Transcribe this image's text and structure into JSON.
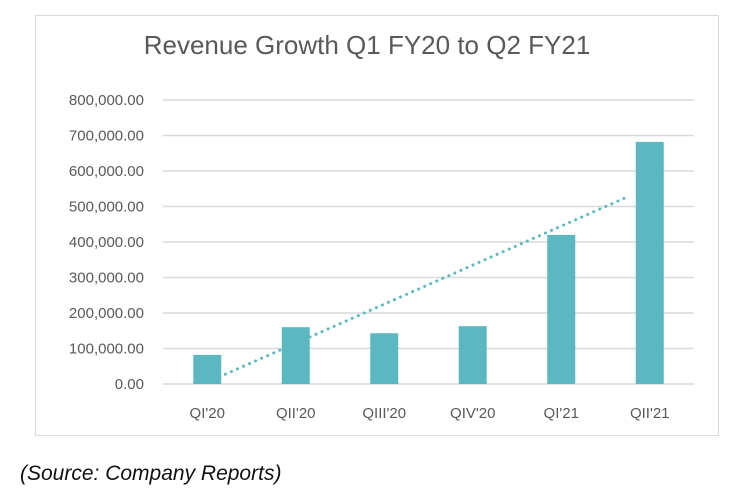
{
  "chart_data": {
    "type": "bar",
    "title": "Revenue Growth Q1 FY20 to Q2 FY21",
    "xlabel": "",
    "ylabel": "",
    "categories": [
      "QI'20",
      "QII'20",
      "QIII'20",
      "QIV'20",
      "QI'21",
      "QII'21"
    ],
    "values": [
      82000,
      160000,
      143000,
      163000,
      420000,
      682000
    ],
    "ylim": [
      0,
      800000
    ],
    "yticks": [
      0,
      100000,
      200000,
      300000,
      400000,
      500000,
      600000,
      700000,
      800000
    ],
    "ytick_labels": [
      "0.00",
      "100,000.00",
      "200,000.00",
      "300,000.00",
      "400,000.00",
      "500,000.00",
      "600,000.00",
      "700,000.00",
      "800,000.00"
    ],
    "grid": true,
    "bar_color": "#5bb8c1",
    "trendline": {
      "type": "linear",
      "style": "dotted",
      "color": "#5bb8c1",
      "start_value": 5000,
      "end_value": 530000
    }
  },
  "caption": "(Source: Company Reports)"
}
